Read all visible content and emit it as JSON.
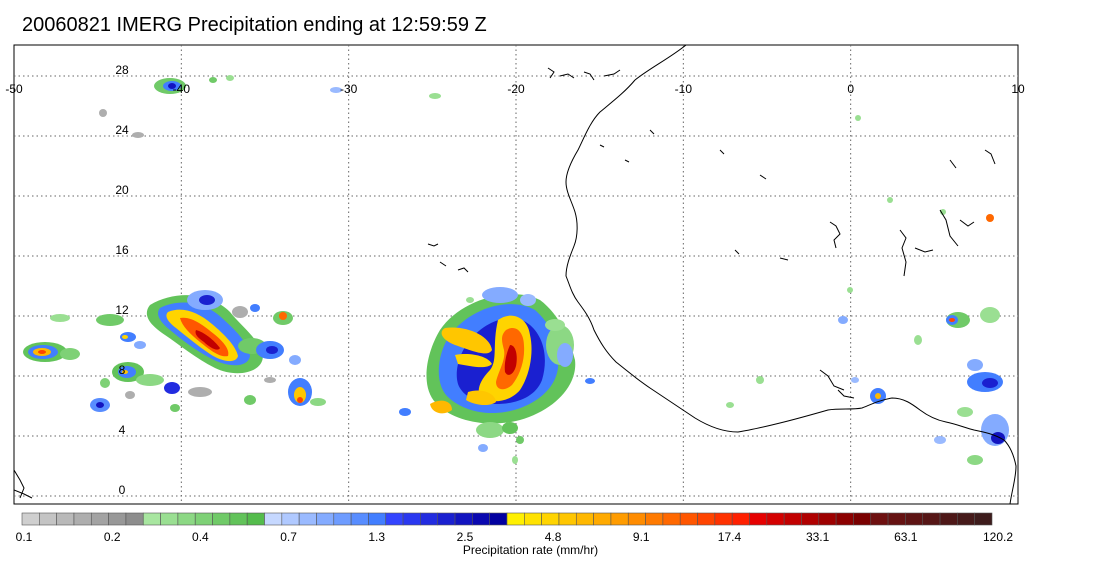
{
  "title": "20060821 IMERG Precipitation ending at 12:59:59 Z",
  "map": {
    "lon_range": [
      -50,
      10
    ],
    "lat_range": [
      -1,
      30
    ],
    "lon_ticks": [
      "-50",
      "-40",
      "-30",
      "-20",
      "-10",
      "0",
      "10"
    ],
    "lat_ticks": [
      "28",
      "24",
      "20",
      "16",
      "12",
      "8",
      "4",
      "0"
    ],
    "gridlines": "dotted"
  },
  "colorbar": {
    "label": "Precipitation rate (mm/hr)",
    "tick_labels": [
      "0.1",
      "0.2",
      "0.4",
      "0.7",
      "1.3",
      "2.5",
      "4.8",
      "9.1",
      "17.4",
      "33.1",
      "63.1",
      "120.2"
    ],
    "groups": [
      {
        "name": "gray",
        "colors": [
          "#cfcfcf",
          "#c4c4c4",
          "#b9b9b9",
          "#aeaeae",
          "#a3a3a3",
          "#989898",
          "#8d8d8d"
        ]
      },
      {
        "name": "green",
        "colors": [
          "#a8e6a0",
          "#9adf92",
          "#8cd884",
          "#7ed176",
          "#70ca68",
          "#62c35a",
          "#54bc4c"
        ]
      },
      {
        "name": "light-blue",
        "colors": [
          "#c6d8ff",
          "#b0c9ff",
          "#9abaff",
          "#84abff",
          "#6e9cff",
          "#588dff",
          "#427eff"
        ]
      },
      {
        "name": "blue",
        "colors": [
          "#3344ff",
          "#2a38f0",
          "#222ce0",
          "#1a20d0",
          "#1214c0",
          "#0a08b0",
          "#0200a0"
        ]
      },
      {
        "name": "yellow",
        "colors": [
          "#fff000",
          "#ffe200",
          "#ffd400",
          "#ffc600",
          "#ffb800",
          "#ffaa00",
          "#ff9c00"
        ]
      },
      {
        "name": "orange-red",
        "colors": [
          "#ff8c00",
          "#ff7a00",
          "#ff6800",
          "#ff5600",
          "#ff4400",
          "#ff3200",
          "#ff2000"
        ]
      },
      {
        "name": "dark-red",
        "colors": [
          "#e60000",
          "#d40000",
          "#c20000",
          "#b00000",
          "#9e0000",
          "#8c0000",
          "#7a0000"
        ]
      },
      {
        "name": "brown",
        "colors": [
          "#6e1010",
          "#661212",
          "#5e1414",
          "#561616",
          "#4e1818",
          "#461a1a",
          "#3e1c1c"
        ]
      }
    ]
  },
  "colors": {
    "grid": "#666666",
    "coast": "#000000",
    "frame": "#000000"
  }
}
